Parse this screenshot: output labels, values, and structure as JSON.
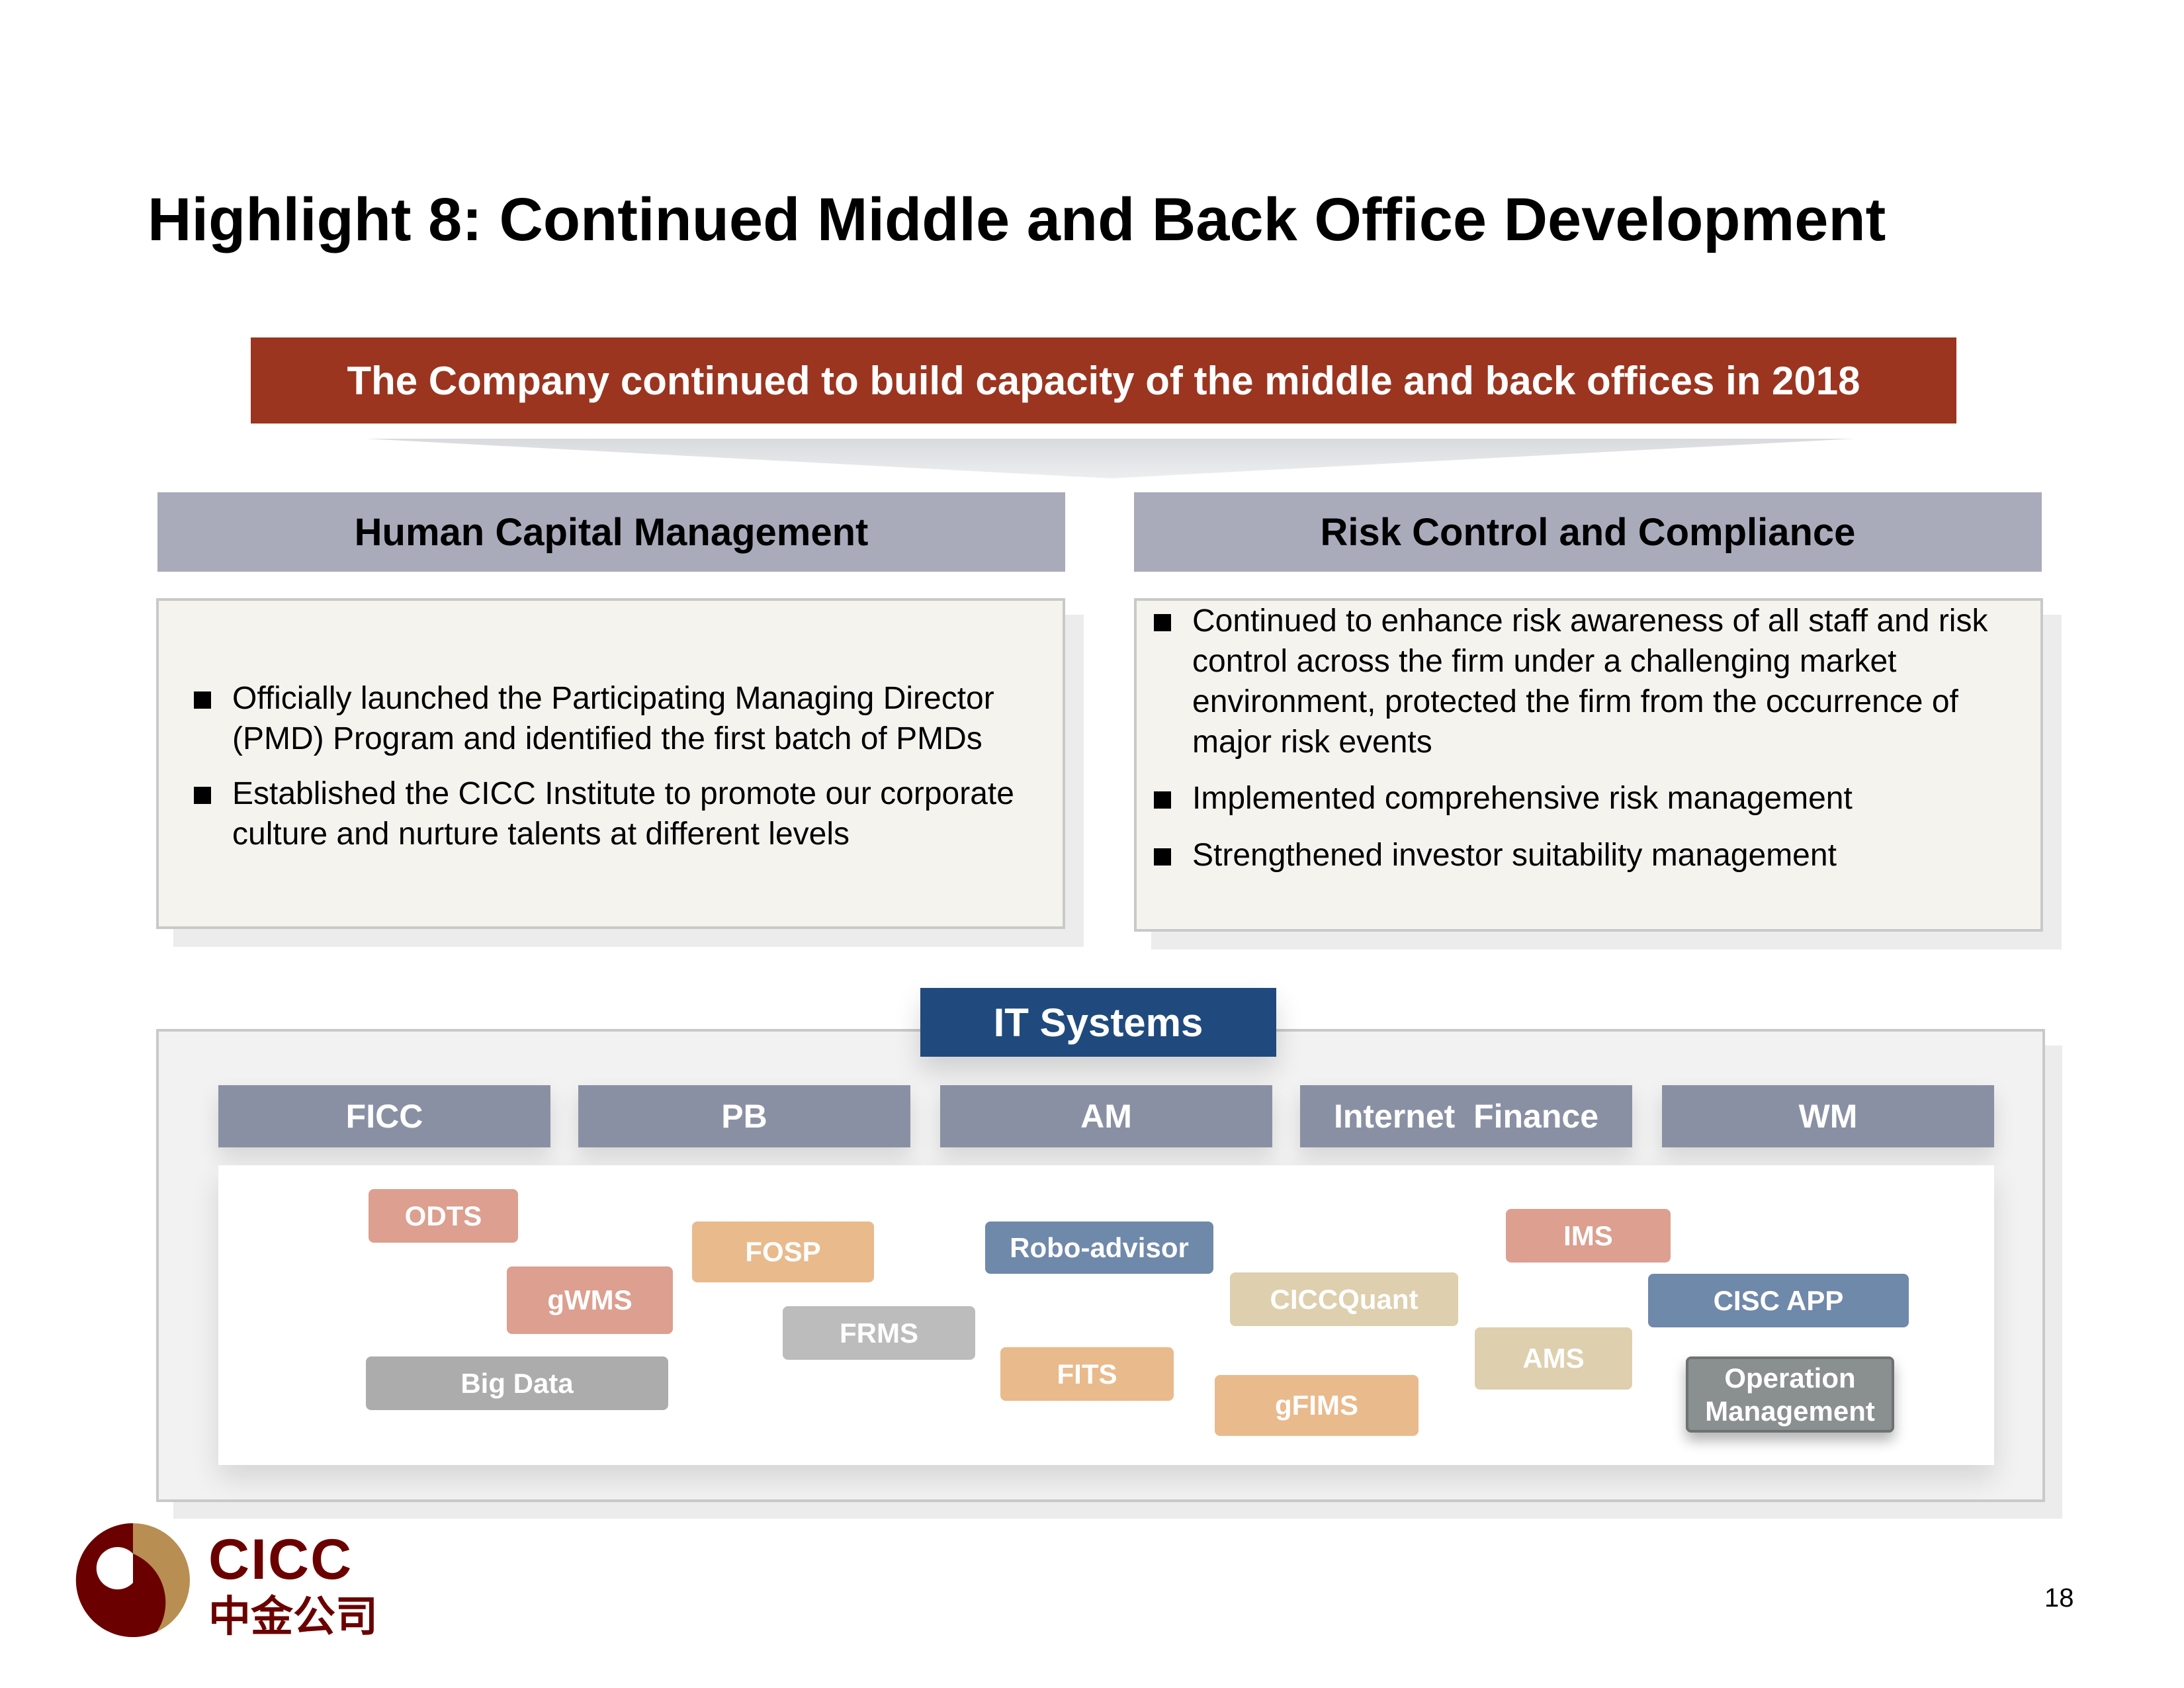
{
  "title": "Highlight 8: Continued Middle and Back Office Development",
  "banner": "The Company continued to build capacity of the middle and back offices in 2018",
  "human_capital": {
    "heading": "Human Capital Management",
    "bullets": [
      "Officially launched the Participating Managing Director (PMD) Program and identified the first batch of PMDs",
      "Established the CICC Institute to promote our corporate culture and nurture talents at different levels"
    ]
  },
  "risk_control": {
    "heading": "Risk Control and Compliance",
    "bullets": [
      "Continued to enhance risk awareness of all staff and risk control across the firm under a challenging market environment, protected the firm from the occurrence of major risk events",
      "Implemented comprehensive risk management",
      "Strengthened investor suitability management"
    ]
  },
  "it_systems": {
    "heading": "IT Systems",
    "categories": [
      "FICC",
      "PB",
      "AM",
      "Internet  Finance",
      "WM"
    ],
    "systems": [
      "ODTS",
      "FOSP",
      "Robo-advisor",
      "IMS",
      "gWMS",
      "CICCQuant",
      "CISC APP",
      "FRMS",
      "AMS",
      "FITS",
      "Big Data",
      "gFIMS",
      "Operation Management"
    ]
  },
  "colors": {
    "banner": "#9b3520",
    "it_header": "#204a7d",
    "category": "#8a90a4",
    "red": "#dc9f90",
    "orange": "#e9ba8c",
    "blue": "#6f89ab",
    "beige": "#decfae",
    "gray": "#b9b9b9",
    "logo_dark": "#6b0000",
    "logo_gold": "#b88e52"
  },
  "logo": {
    "en": "CICC",
    "cn": "中金公司"
  },
  "page_number": "18"
}
